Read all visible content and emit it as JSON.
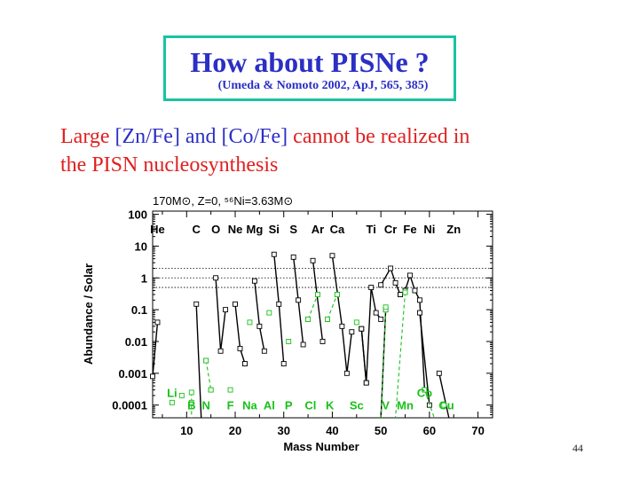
{
  "slide": {
    "title": "How about PISNe ?",
    "subtitle": "(Umeda & Nomoto 2002, ApJ, 565, 385)",
    "statement": {
      "part1": "Large ",
      "part2": "[Zn/Fe]",
      "part3": " and ",
      "part4": "[Co/Fe]",
      "part5": " cannot be realized in",
      "line2": "the PISN nucleosynthesis"
    },
    "page_number": "44"
  },
  "colors": {
    "title": "#2b2fc4",
    "statement": "#e02020",
    "box_border": "#19c3a3",
    "green": "#19c119",
    "black": "#000000"
  },
  "chart_data": {
    "type": "line",
    "title": "170M⊙, Z=0, ⁵⁶Ni=3.63M⊙",
    "xlabel": "Mass Number",
    "ylabel": "Abundance / Solar",
    "xlim": [
      3,
      73
    ],
    "ylim_log10": [
      -4.4,
      2.1
    ],
    "xscale": "linear",
    "yscale": "log",
    "x_ticks": [
      10,
      20,
      30,
      40,
      50,
      60,
      70
    ],
    "y_ticks": [
      {
        "value": 100,
        "label": "100"
      },
      {
        "value": 10,
        "label": "10"
      },
      {
        "value": 1,
        "label": "1"
      },
      {
        "value": 0.1,
        "label": "0.1"
      },
      {
        "value": 0.01,
        "label": "0.01"
      },
      {
        "value": 0.001,
        "label": "0.001"
      },
      {
        "value": 0.0001,
        "label": "0.0001"
      }
    ],
    "reference_lines": [
      2,
      1,
      0.5
    ],
    "elements_top": [
      {
        "label": "He",
        "x": 4
      },
      {
        "label": "C",
        "x": 12
      },
      {
        "label": "O",
        "x": 16
      },
      {
        "label": "Ne",
        "x": 20
      },
      {
        "label": "Mg",
        "x": 24
      },
      {
        "label": "Si",
        "x": 28
      },
      {
        "label": "S",
        "x": 32
      },
      {
        "label": "Ar",
        "x": 37
      },
      {
        "label": "Ca",
        "x": 41
      },
      {
        "label": "Ti",
        "x": 48
      },
      {
        "label": "Cr",
        "x": 52
      },
      {
        "label": "Fe",
        "x": 56
      },
      {
        "label": "Ni",
        "x": 60
      },
      {
        "label": "Zn",
        "x": 65
      }
    ],
    "elements_bottom": [
      {
        "label": "Li",
        "x": 7,
        "y": 0.00025
      },
      {
        "label": "B",
        "x": 11,
        "y": 0.0001
      },
      {
        "label": "N",
        "x": 14,
        "y": 0.0001
      },
      {
        "label": "F",
        "x": 19,
        "y": 0.0001
      },
      {
        "label": "Na",
        "x": 23,
        "y": 0.0001
      },
      {
        "label": "Al",
        "x": 27,
        "y": 0.0001
      },
      {
        "label": "P",
        "x": 31,
        "y": 0.0001
      },
      {
        "label": "Cl",
        "x": 35.5,
        "y": 0.0001
      },
      {
        "label": "K",
        "x": 39.5,
        "y": 0.0001
      },
      {
        "label": "Sc",
        "x": 45,
        "y": 0.0001
      },
      {
        "label": "V",
        "x": 51,
        "y": 0.0001
      },
      {
        "label": "Mn",
        "x": 55,
        "y": 0.0001
      },
      {
        "label": "Co",
        "x": 59,
        "y": 0.00025
      },
      {
        "label": "Cu",
        "x": 63.5,
        "y": 0.0001
      }
    ],
    "series": [
      {
        "color": "black",
        "points": [
          [
            3,
            0.0008
          ],
          [
            4,
            0.04
          ]
        ]
      },
      {
        "color": "black",
        "points": [
          [
            12,
            0.15
          ],
          [
            13,
            3e-05
          ]
        ]
      },
      {
        "color": "black",
        "points": [
          [
            16,
            1.0
          ],
          [
            17,
            0.005
          ],
          [
            18,
            0.1
          ]
        ]
      },
      {
        "color": "black",
        "points": [
          [
            20,
            0.15
          ],
          [
            21,
            0.006
          ],
          [
            22,
            0.002
          ]
        ]
      },
      {
        "color": "black",
        "points": [
          [
            24,
            0.8
          ],
          [
            25,
            0.03
          ],
          [
            26,
            0.005
          ]
        ]
      },
      {
        "color": "black",
        "points": [
          [
            28,
            5.5
          ],
          [
            29,
            0.15
          ],
          [
            30,
            0.002
          ]
        ]
      },
      {
        "color": "black",
        "points": [
          [
            32,
            4.5
          ],
          [
            33,
            0.2
          ],
          [
            34,
            0.008
          ]
        ]
      },
      {
        "color": "black",
        "points": [
          [
            36,
            3.5
          ],
          [
            38,
            0.01
          ]
        ]
      },
      {
        "color": "black",
        "points": [
          [
            40,
            5.0
          ],
          [
            42,
            0.03
          ],
          [
            43,
            0.001
          ],
          [
            44,
            0.02
          ]
        ]
      },
      {
        "color": "black",
        "points": [
          [
            46,
            0.025
          ],
          [
            47,
            0.0005
          ]
        ]
      },
      {
        "color": "black",
        "points": [
          [
            46,
            0.025
          ],
          [
            47,
            0.0005
          ],
          [
            48,
            0.5
          ],
          [
            49,
            0.08
          ],
          [
            50,
            0.05
          ]
        ]
      },
      {
        "color": "black",
        "points": [
          [
            50,
            0.6
          ],
          [
            52,
            2.0
          ],
          [
            53,
            0.7
          ],
          [
            54,
            0.3
          ]
        ]
      },
      {
        "color": "black",
        "points": [
          [
            54,
            0.3
          ],
          [
            55,
            0.4
          ],
          [
            56,
            1.2
          ],
          [
            57,
            0.4
          ],
          [
            58,
            0.2
          ],
          [
            59,
            0.0003
          ]
        ]
      },
      {
        "color": "black",
        "points": [
          [
            58,
            0.08
          ],
          [
            60,
            0.0001
          ]
        ]
      },
      {
        "color": "black",
        "points": [
          [
            62,
            0.001
          ],
          [
            64,
            3e-05
          ]
        ]
      },
      {
        "color": "black",
        "points": [
          [
            51,
            0.1
          ],
          [
            50,
            3e-05
          ]
        ]
      },
      {
        "color": "green",
        "dashed": true,
        "points": [
          [
            11,
            0.00025
          ],
          [
            11,
            3e-05
          ]
        ]
      },
      {
        "color": "green",
        "dashed": true,
        "points": [
          [
            14,
            0.0025
          ],
          [
            15,
            0.0003
          ]
        ]
      },
      {
        "color": "green",
        "dashed": true,
        "points": [
          [
            35,
            0.05
          ],
          [
            37,
            0.3
          ]
        ]
      },
      {
        "color": "green",
        "dashed": true,
        "points": [
          [
            39,
            0.05
          ],
          [
            41,
            0.3
          ]
        ]
      },
      {
        "color": "green",
        "dashed": true,
        "points": [
          [
            51,
            0.1
          ],
          [
            50,
            3e-05
          ]
        ]
      },
      {
        "color": "green",
        "dashed": true,
        "points": [
          [
            55,
            0.35
          ],
          [
            53,
            3e-05
          ]
        ]
      },
      {
        "color": "green",
        "dashed": true,
        "points": [
          [
            59,
            0.0003
          ],
          [
            61,
            3e-05
          ]
        ]
      }
    ],
    "green_points": [
      [
        7,
        0.00012
      ],
      [
        9,
        0.0002
      ],
      [
        11,
        0.00012
      ],
      [
        14,
        0.0025
      ],
      [
        15,
        0.0003
      ],
      [
        19,
        0.0003
      ],
      [
        23,
        0.04
      ],
      [
        27,
        0.08
      ],
      [
        31,
        0.01
      ],
      [
        35,
        0.05
      ],
      [
        37,
        0.3
      ],
      [
        39,
        0.05
      ],
      [
        41,
        0.3
      ],
      [
        45,
        0.04
      ],
      [
        51,
        0.12
      ],
      [
        55,
        0.35
      ],
      [
        59,
        0.0003
      ],
      [
        63,
        0.0001
      ]
    ]
  }
}
